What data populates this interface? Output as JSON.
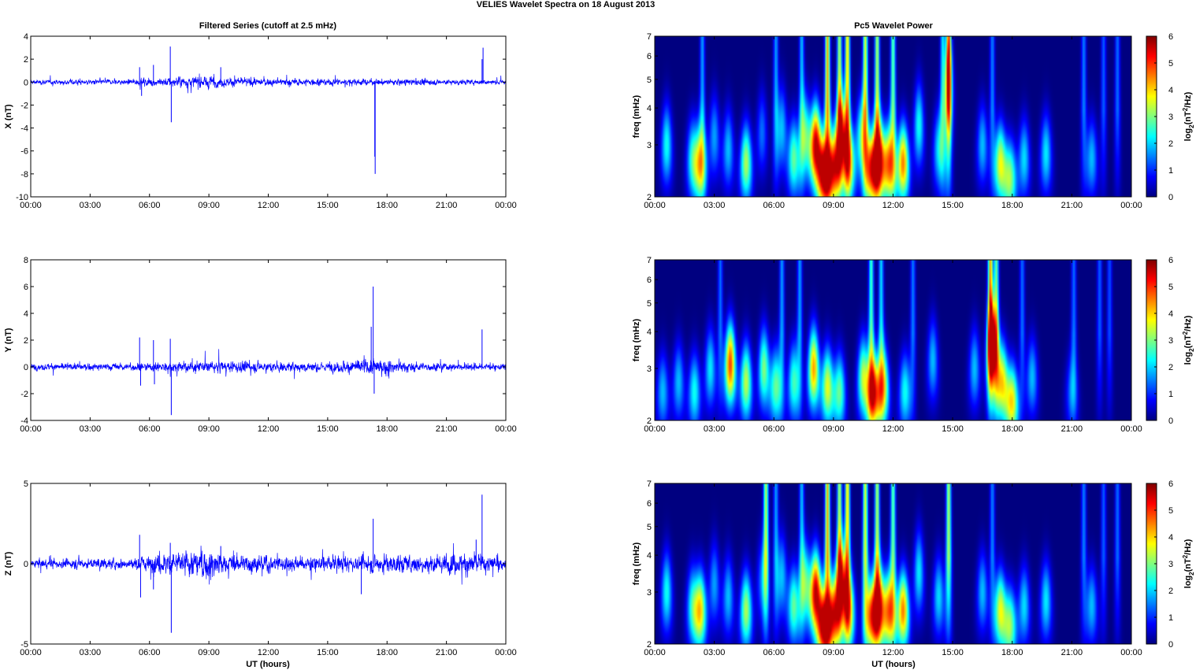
{
  "figure": {
    "title": "VELIES Wavelet Spectra on 18 August    2013",
    "left_title": "Filtered Series (cutoff at 2.5 mHz)",
    "right_title": "Pc5 Wavelet Power",
    "xlabel": "UT (hours)",
    "freq_label": "freq (mHz)",
    "colorbar_label": "log2(nT2/Hz)"
  },
  "chart_data": [
    {
      "type": "line",
      "panel": "X",
      "ylabel": "X (nT)",
      "x_ticks": [
        "00:00",
        "03:00",
        "06:00",
        "09:00",
        "12:00",
        "15:00",
        "18:00",
        "21:00",
        "00:00"
      ],
      "xlim_hours": [
        0,
        24
      ],
      "ylim": [
        -10,
        4
      ],
      "y_ticks": [
        -10,
        -8,
        -6,
        -4,
        -2,
        0,
        2,
        4
      ],
      "series_color": "#0000ff",
      "noise_envelope": [
        [
          0,
          0.22
        ],
        [
          5,
          0.25
        ],
        [
          7,
          0.45
        ],
        [
          9,
          0.55
        ],
        [
          10,
          0.4
        ],
        [
          12,
          0.35
        ],
        [
          16,
          0.3
        ],
        [
          20,
          0.28
        ],
        [
          24,
          0.22
        ]
      ],
      "spikes": [
        {
          "x": 5.5,
          "y": 1.3
        },
        {
          "x": 5.6,
          "y": -1.2
        },
        {
          "x": 6.2,
          "y": 1.5
        },
        {
          "x": 7.05,
          "y": 3.1
        },
        {
          "x": 7.1,
          "y": -3.5
        },
        {
          "x": 9.6,
          "y": 1.3
        },
        {
          "x": 17.4,
          "y": -8.0
        },
        {
          "x": 17.38,
          "y": -6.5
        },
        {
          "x": 22.85,
          "y": 3.0
        },
        {
          "x": 22.8,
          "y": 2.0
        }
      ]
    },
    {
      "type": "line",
      "panel": "Y",
      "ylabel": "Y (nT)",
      "x_ticks": [
        "00:00",
        "03:00",
        "06:00",
        "09:00",
        "12:00",
        "15:00",
        "18:00",
        "21:00",
        "00:00"
      ],
      "xlim_hours": [
        0,
        24
      ],
      "ylim": [
        -4,
        8
      ],
      "y_ticks": [
        -4,
        -2,
        0,
        2,
        4,
        6,
        8
      ],
      "series_color": "#0000ff",
      "noise_envelope": [
        [
          0,
          0.25
        ],
        [
          5,
          0.3
        ],
        [
          8,
          0.45
        ],
        [
          12,
          0.4
        ],
        [
          15,
          0.35
        ],
        [
          17,
          0.7
        ],
        [
          18,
          0.5
        ],
        [
          20,
          0.3
        ],
        [
          24,
          0.25
        ]
      ],
      "spikes": [
        {
          "x": 5.5,
          "y": 2.2
        },
        {
          "x": 5.55,
          "y": -1.4
        },
        {
          "x": 6.2,
          "y": 2.0
        },
        {
          "x": 6.25,
          "y": -1.3
        },
        {
          "x": 7.05,
          "y": 2.1
        },
        {
          "x": 7.1,
          "y": -3.6
        },
        {
          "x": 17.3,
          "y": 6.0
        },
        {
          "x": 17.2,
          "y": 3.0
        },
        {
          "x": 17.35,
          "y": -2.0
        },
        {
          "x": 22.8,
          "y": 2.8
        }
      ]
    },
    {
      "type": "line",
      "panel": "Z",
      "ylabel": "Z (nT)",
      "x_ticks": [
        "00:00",
        "03:00",
        "06:00",
        "09:00",
        "12:00",
        "15:00",
        "18:00",
        "21:00",
        "00:00"
      ],
      "xlim_hours": [
        0,
        24
      ],
      "ylim": [
        -5,
        5
      ],
      "y_ticks": [
        -5,
        0,
        5
      ],
      "series_color": "#0000ff",
      "noise_envelope": [
        [
          0,
          0.3
        ],
        [
          5,
          0.35
        ],
        [
          7,
          0.8
        ],
        [
          9,
          1.0
        ],
        [
          10,
          0.6
        ],
        [
          13,
          0.5
        ],
        [
          16,
          0.5
        ],
        [
          18,
          0.6
        ],
        [
          21,
          0.6
        ],
        [
          22.5,
          0.9
        ],
        [
          24,
          0.3
        ]
      ],
      "spikes": [
        {
          "x": 5.5,
          "y": 1.8
        },
        {
          "x": 5.55,
          "y": -2.1
        },
        {
          "x": 6.2,
          "y": -1.6
        },
        {
          "x": 7.05,
          "y": 1.3
        },
        {
          "x": 7.1,
          "y": -4.3
        },
        {
          "x": 9.6,
          "y": 1.1
        },
        {
          "x": 17.3,
          "y": 2.8
        },
        {
          "x": 16.7,
          "y": -1.9
        },
        {
          "x": 22.8,
          "y": 4.3
        },
        {
          "x": 22.5,
          "y": 1.5
        }
      ]
    },
    {
      "type": "heatmap",
      "panel": "X",
      "ylabel": "freq (mHz)",
      "x_ticks": [
        "00:00",
        "03:00",
        "06:00",
        "09:00",
        "12:00",
        "15:00",
        "18:00",
        "21:00",
        "00:00"
      ],
      "xlim_hours": [
        0,
        24
      ],
      "ylim_mhz": [
        2,
        7
      ],
      "y_scale": "log",
      "y_ticks": [
        2,
        3,
        4,
        5,
        6,
        7
      ],
      "colorbar_ticks": [
        0,
        1,
        2,
        3,
        4,
        5,
        6
      ],
      "colorbar_range": [
        0,
        6
      ],
      "colormap": "jet",
      "blobs": [
        [
          0.6,
          3.0,
          2.5
        ],
        [
          1.9,
          2.7,
          2.5
        ],
        [
          2.3,
          2.6,
          3.8
        ],
        [
          3.0,
          3.2,
          1.8
        ],
        [
          3.7,
          2.9,
          2.0
        ],
        [
          4.6,
          2.6,
          3.5
        ],
        [
          5.4,
          3.3,
          1.5
        ],
        [
          6.4,
          3.4,
          2.0
        ],
        [
          7.0,
          2.7,
          3.0
        ],
        [
          7.6,
          3.2,
          2.8
        ],
        [
          8.1,
          3.0,
          5.8
        ],
        [
          8.5,
          2.4,
          5.5
        ],
        [
          9.0,
          2.5,
          5.0
        ],
        [
          9.4,
          3.2,
          4.8
        ],
        [
          9.8,
          2.6,
          3.6
        ],
        [
          10.4,
          3.2,
          2.8
        ],
        [
          10.9,
          2.5,
          4.8
        ],
        [
          11.3,
          2.7,
          5.4
        ],
        [
          11.8,
          2.6,
          4.5
        ],
        [
          12.5,
          2.6,
          4.8
        ],
        [
          13.3,
          3.5,
          2.5
        ],
        [
          14.3,
          2.9,
          2.2
        ],
        [
          14.8,
          5.0,
          3.0
        ],
        [
          16.5,
          3.0,
          2.0
        ],
        [
          17.4,
          2.6,
          3.8
        ],
        [
          17.9,
          2.3,
          3.2
        ],
        [
          18.6,
          2.7,
          2.2
        ],
        [
          19.7,
          2.8,
          2.3
        ],
        [
          22.0,
          2.7,
          2.0
        ]
      ],
      "streaks": [
        [
          2.4,
          1.8
        ],
        [
          6.1,
          1.8
        ],
        [
          7.4,
          2.0
        ],
        [
          8.7,
          4.5
        ],
        [
          9.3,
          3.5
        ],
        [
          9.7,
          4.2
        ],
        [
          10.6,
          3.8
        ],
        [
          11.2,
          3.5
        ],
        [
          12.0,
          3.0
        ],
        [
          14.5,
          2.2
        ],
        [
          14.8,
          4.0
        ],
        [
          17.0,
          1.6
        ],
        [
          21.6,
          1.6
        ],
        [
          22.6,
          1.4
        ],
        [
          23.3,
          1.5
        ]
      ]
    },
    {
      "type": "heatmap",
      "panel": "Y",
      "ylabel": "freq (mHz)",
      "x_ticks": [
        "00:00",
        "03:00",
        "06:00",
        "09:00",
        "12:00",
        "15:00",
        "18:00",
        "21:00",
        "00:00"
      ],
      "xlim_hours": [
        0,
        24
      ],
      "ylim_mhz": [
        2,
        7
      ],
      "y_scale": "log",
      "y_ticks": [
        2,
        3,
        4,
        5,
        6,
        7
      ],
      "colorbar_ticks": [
        0,
        1,
        2,
        3,
        4,
        5,
        6
      ],
      "colorbar_range": [
        0,
        6
      ],
      "colormap": "jet",
      "blobs": [
        [
          0.4,
          2.5,
          2.0
        ],
        [
          1.2,
          2.7,
          2.0
        ],
        [
          2.0,
          2.5,
          2.5
        ],
        [
          2.8,
          3.0,
          2.3
        ],
        [
          3.8,
          3.1,
          5.2
        ],
        [
          4.6,
          2.7,
          3.6
        ],
        [
          5.5,
          3.0,
          3.2
        ],
        [
          6.1,
          2.6,
          3.0
        ],
        [
          7.0,
          2.7,
          2.8
        ],
        [
          8.0,
          3.0,
          4.6
        ],
        [
          8.7,
          2.6,
          3.8
        ],
        [
          9.3,
          2.5,
          3.0
        ],
        [
          10.5,
          2.8,
          3.5
        ],
        [
          11.0,
          2.5,
          5.2
        ],
        [
          11.5,
          2.6,
          4.0
        ],
        [
          12.6,
          2.5,
          2.5
        ],
        [
          14.0,
          3.2,
          2.0
        ],
        [
          16.1,
          3.0,
          2.0
        ],
        [
          17.0,
          3.6,
          5.4
        ],
        [
          17.5,
          2.7,
          4.0
        ],
        [
          18.0,
          2.3,
          4.0
        ],
        [
          19.0,
          2.8,
          2.0
        ],
        [
          21.0,
          2.5,
          1.5
        ]
      ],
      "streaks": [
        [
          3.3,
          1.5
        ],
        [
          6.4,
          1.8
        ],
        [
          7.3,
          1.8
        ],
        [
          10.9,
          2.8
        ],
        [
          11.4,
          2.2
        ],
        [
          13.0,
          1.6
        ],
        [
          16.9,
          4.5
        ],
        [
          17.2,
          3.0
        ],
        [
          18.5,
          1.5
        ],
        [
          21.1,
          1.5
        ],
        [
          22.4,
          1.4
        ],
        [
          22.9,
          1.3
        ]
      ]
    },
    {
      "type": "heatmap",
      "panel": "Z",
      "ylabel": "freq (mHz)",
      "x_ticks": [
        "00:00",
        "03:00",
        "06:00",
        "09:00",
        "12:00",
        "15:00",
        "18:00",
        "21:00",
        "00:00"
      ],
      "xlim_hours": [
        0,
        24
      ],
      "ylim_mhz": [
        2,
        7
      ],
      "y_scale": "log",
      "y_ticks": [
        2,
        3,
        4,
        5,
        6,
        7
      ],
      "colorbar_ticks": [
        0,
        1,
        2,
        3,
        4,
        5,
        6
      ],
      "colorbar_range": [
        0,
        6
      ],
      "colormap": "jet",
      "blobs": [
        [
          0.6,
          3.0,
          2.5
        ],
        [
          1.9,
          2.7,
          2.5
        ],
        [
          2.3,
          2.6,
          4.0
        ],
        [
          3.0,
          3.2,
          1.8
        ],
        [
          3.7,
          2.9,
          2.0
        ],
        [
          4.6,
          2.6,
          3.5
        ],
        [
          5.4,
          3.3,
          1.5
        ],
        [
          6.4,
          3.4,
          2.0
        ],
        [
          7.0,
          2.7,
          3.0
        ],
        [
          7.6,
          3.2,
          2.8
        ],
        [
          8.1,
          3.0,
          5.8
        ],
        [
          8.5,
          2.3,
          5.5
        ],
        [
          9.0,
          2.5,
          5.0
        ],
        [
          9.4,
          3.2,
          4.8
        ],
        [
          9.8,
          2.6,
          3.6
        ],
        [
          10.9,
          2.5,
          4.6
        ],
        [
          11.3,
          2.7,
          5.0
        ],
        [
          11.8,
          2.6,
          4.5
        ],
        [
          12.5,
          2.6,
          4.8
        ],
        [
          13.3,
          3.5,
          2.3
        ],
        [
          14.3,
          2.9,
          2.2
        ],
        [
          16.5,
          3.0,
          2.0
        ],
        [
          17.4,
          2.6,
          3.8
        ],
        [
          17.9,
          2.3,
          3.2
        ],
        [
          18.6,
          2.7,
          2.2
        ],
        [
          19.7,
          2.8,
          2.3
        ],
        [
          22.0,
          2.7,
          2.0
        ]
      ],
      "streaks": [
        [
          5.6,
          3.5
        ],
        [
          6.1,
          1.8
        ],
        [
          7.4,
          2.0
        ],
        [
          8.7,
          4.5
        ],
        [
          9.3,
          3.5
        ],
        [
          9.7,
          4.2
        ],
        [
          10.6,
          3.8
        ],
        [
          11.2,
          3.5
        ],
        [
          12.0,
          3.0
        ],
        [
          14.8,
          3.5
        ],
        [
          17.0,
          1.6
        ],
        [
          21.6,
          1.6
        ],
        [
          22.6,
          1.4
        ],
        [
          23.3,
          1.5
        ]
      ]
    }
  ]
}
